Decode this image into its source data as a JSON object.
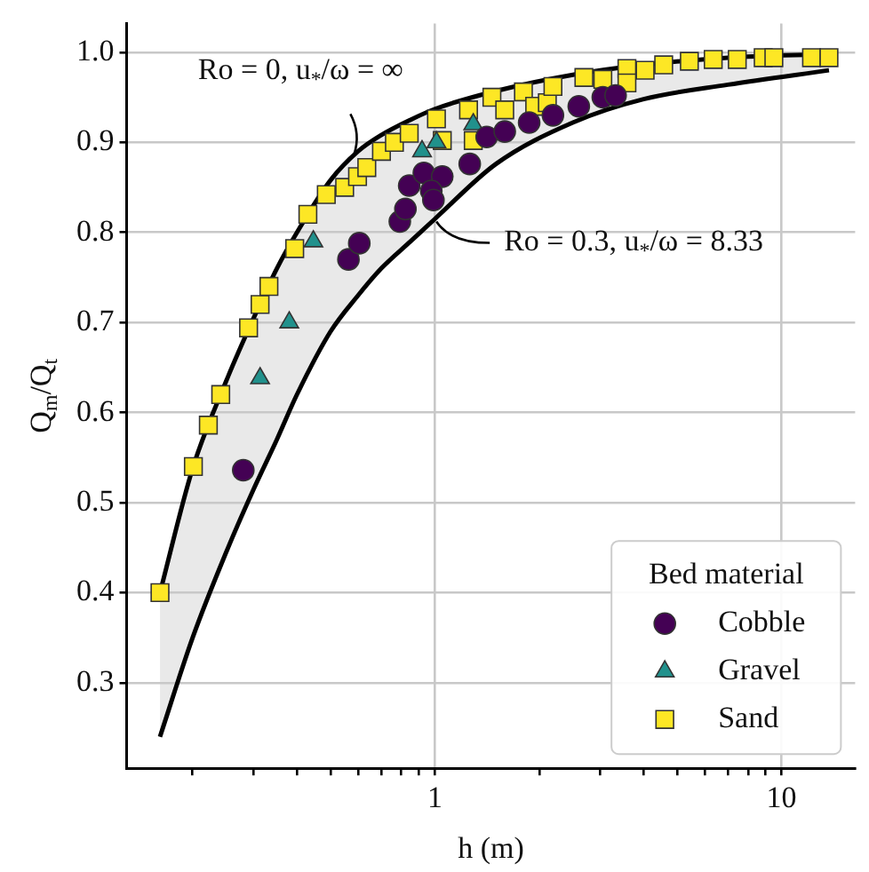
{
  "chart_data": {
    "type": "scatter",
    "xlabel": "h (m)",
    "ylabel": "Q$_{m}$/Q$_{t}$",
    "legend_title": "Bed material",
    "legend": "bottom right",
    "grid": true,
    "log": "x",
    "xlim": [
      0.129,
      16.3
    ],
    "ylim": [
      0.205,
      1.032
    ],
    "xticks": [
      {
        "value": 0.2,
        "label": null
      },
      {
        "value": 0.3,
        "label": null
      },
      {
        "value": 0.4,
        "label": null
      },
      {
        "value": 0.5,
        "label": null
      },
      {
        "value": 0.6,
        "label": null
      },
      {
        "value": 0.7,
        "label": null
      },
      {
        "value": 0.8,
        "label": null
      },
      {
        "value": 0.9,
        "label": null
      },
      1,
      {
        "value": 2,
        "label": null
      },
      {
        "value": 3,
        "label": null
      },
      {
        "value": 4,
        "label": null
      },
      {
        "value": 5,
        "label": null
      },
      {
        "value": 6,
        "label": null
      },
      {
        "value": 7,
        "label": null
      },
      {
        "value": 8,
        "label": null
      },
      {
        "value": 9,
        "label": null
      },
      10
    ],
    "yticks": [
      0.3,
      0.4,
      0.5,
      0.6,
      0.7,
      0.8,
      0.9,
      {
        "value": 1,
        "label": "1.0"
      }
    ],
    "series": [
      {
        "type": "line",
        "color": "#000000",
        "x": [
          0.161,
          0.2,
          0.25,
          0.3,
          0.35,
          0.4,
          0.5,
          0.6,
          0.7,
          0.85,
          1,
          1.5,
          2.5,
          4,
          7,
          13.7
        ],
        "values": [
          0.4,
          0.538,
          0.635,
          0.705,
          0.76,
          0.8,
          0.858,
          0.89,
          0.908,
          0.925,
          0.937,
          0.957,
          0.975,
          0.986,
          0.994,
          0.998
        ],
        "lower": [
          0.24,
          0.35,
          0.445,
          0.515,
          0.57,
          0.62,
          0.69,
          0.73,
          0.76,
          0.79,
          0.815,
          0.876,
          0.922,
          0.948,
          0.964,
          0.98
        ],
        "upper": [
          0.4,
          0.538,
          0.635,
          0.705,
          0.76,
          0.8,
          0.858,
          0.89,
          0.908,
          0.925,
          0.937,
          0.957,
          0.975,
          0.986,
          0.994,
          0.998
        ]
      },
      {
        "type": "line",
        "color": "#000000",
        "x": [
          0.161,
          0.2,
          0.25,
          0.3,
          0.35,
          0.4,
          0.5,
          0.6,
          0.7,
          0.85,
          1,
          1.5,
          2.5,
          4,
          7,
          13.7
        ],
        "values": [
          0.24,
          0.35,
          0.445,
          0.515,
          0.57,
          0.62,
          0.69,
          0.73,
          0.76,
          0.79,
          0.815,
          0.876,
          0.922,
          0.948,
          0.964,
          0.98
        ]
      },
      {
        "name": "Cobble",
        "color": "#440154",
        "marker": "circle",
        "x": [
          0.28,
          0.563,
          0.605,
          0.792,
          0.822,
          0.843,
          0.929,
          1.05,
          0.976,
          0.99,
          1.26,
          1.41,
          1.59,
          1.87,
          2.19,
          2.6,
          3.05,
          3.32
        ],
        "values": [
          0.536,
          0.77,
          0.788,
          0.812,
          0.826,
          0.852,
          0.866,
          0.862,
          0.846,
          0.836,
          0.876,
          0.906,
          0.912,
          0.922,
          0.93,
          0.94,
          0.95,
          0.952
        ]
      },
      {
        "name": "Gravel",
        "color": "#21918c",
        "marker": "triangle",
        "x": [
          0.38,
          0.313,
          0.446,
          0.918,
          1.01,
          1.29
        ],
        "values": [
          0.7,
          0.638,
          0.79,
          0.89,
          0.9,
          0.92
        ]
      },
      {
        "name": "Sand",
        "color": "#fde725",
        "marker": "square",
        "x": [
          0.161,
          0.201,
          0.222,
          0.241,
          0.29,
          0.313,
          0.332,
          0.394,
          0.43,
          0.486,
          0.549,
          0.598,
          0.636,
          0.701,
          0.764,
          0.843,
          1.01,
          1.05,
          1.25,
          1.29,
          1.46,
          1.59,
          1.8,
          1.94,
          2.11,
          2.19,
          2.69,
          3.05,
          3.58,
          3.58,
          4.04,
          4.57,
          5.42,
          6.35,
          7.45,
          8.85,
          9.5,
          12.2,
          13.7
        ],
        "values": [
          0.4,
          0.54,
          0.586,
          0.62,
          0.694,
          0.72,
          0.74,
          0.782,
          0.82,
          0.842,
          0.85,
          0.862,
          0.872,
          0.89,
          0.9,
          0.91,
          0.926,
          0.902,
          0.936,
          0.902,
          0.95,
          0.936,
          0.956,
          0.94,
          0.944,
          0.962,
          0.972,
          0.97,
          0.982,
          0.966,
          0.98,
          0.986,
          0.99,
          0.992,
          0.992,
          0.994,
          0.994,
          0.994,
          0.994
        ]
      }
    ],
    "annotations": [
      {
        "text": "Ro = 0, u$_{*}$/ω = ∞",
        "x": 0.584,
        "y": 0.886
      },
      {
        "text": "Ro = 0.3, u$_{*}$/ω = 8.33",
        "x": 1.01,
        "y": 0.812
      }
    ]
  }
}
